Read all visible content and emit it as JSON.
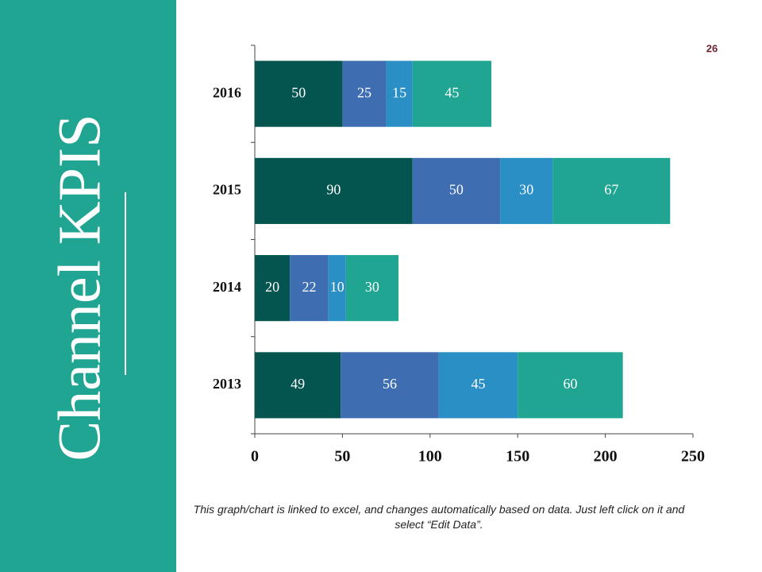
{
  "title": "Channel KPIS",
  "page_number": "26",
  "note": "This graph/chart is linked to excel, and changes automatically based on data. Just left click on it and select “Edit Data”.",
  "chart_data": {
    "type": "hbar-stacked",
    "categories": [
      "2013",
      "2014",
      "2015",
      "2016"
    ],
    "series": [
      {
        "color": "#04544f",
        "values": [
          49,
          20,
          90,
          50
        ]
      },
      {
        "color": "#3f6db2",
        "values": [
          56,
          22,
          50,
          25
        ]
      },
      {
        "color": "#2a8fc4",
        "values": [
          45,
          10,
          30,
          15
        ]
      },
      {
        "color": "#21a593",
        "values": [
          60,
          30,
          67,
          45
        ]
      }
    ],
    "xlim": [
      0,
      250
    ],
    "xticks": [
      0,
      50,
      100,
      150,
      200,
      250
    ]
  }
}
